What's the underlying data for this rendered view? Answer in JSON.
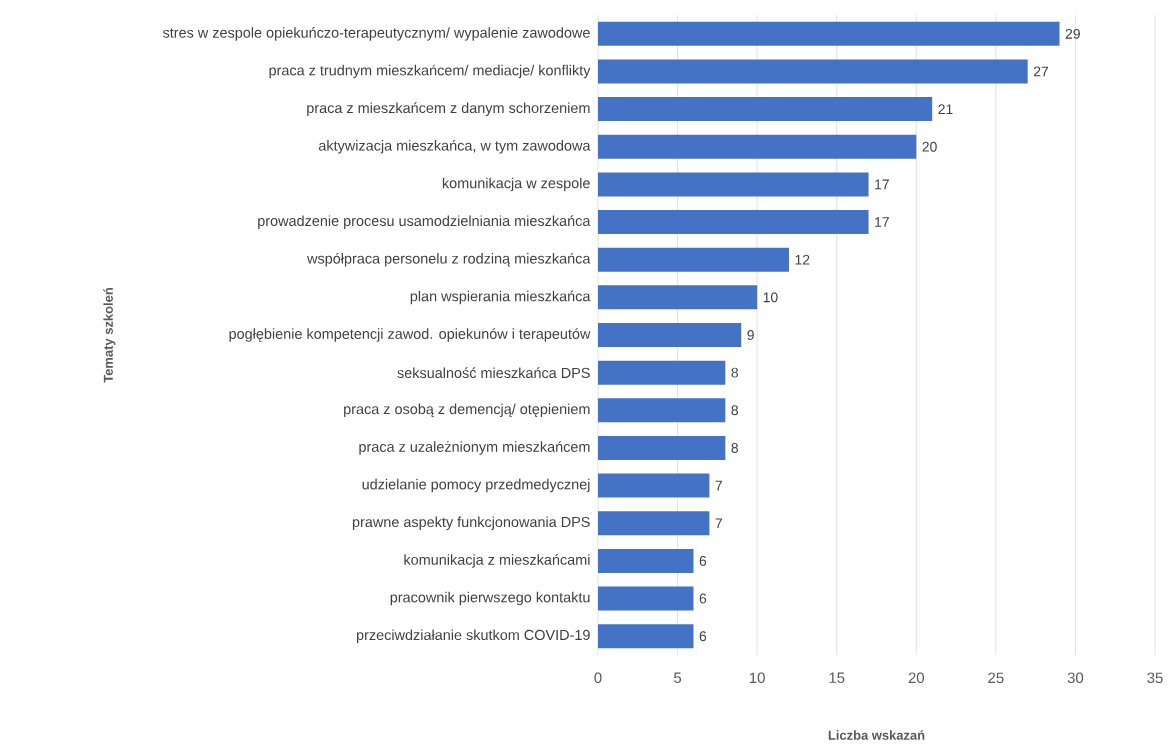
{
  "chart_data": {
    "type": "bar",
    "orientation": "horizontal",
    "xlabel": "Liczba wskazań",
    "ylabel": "Tematy szkoleń",
    "categories": [
      "stres w zespole opiekuńczo-terapeutycznym/ wypalenie zawodowe",
      "praca z trudnym mieszkańcem/ mediacje/ konflikty",
      "praca z mieszkańcem z danym schorzeniem",
      "aktywizacja mieszkańca, w tym zawodowa",
      "komunikacja w zespole",
      "prowadzenie procesu usamodzielniania mieszkańca",
      "współpraca personelu z rodziną mieszkańca",
      "plan wspierania mieszkańca",
      "pogłębienie kompetencji zawod. opiekunów i terapeutów",
      "seksualność mieszkańca DPS",
      "praca z osobą z demencją/ otępieniem",
      "praca z uzależnionym mieszkańcem",
      "udzielanie pomocy przedmedycznej",
      "prawne aspekty funkcjonowania DPS",
      "komunikacja z mieszkańcami",
      "pracownik pierwszego kontaktu",
      "przeciwdziałanie skutkom COVID-19"
    ],
    "values": [
      29,
      27,
      21,
      20,
      17,
      17,
      12,
      10,
      9,
      8,
      8,
      8,
      7,
      7,
      6,
      6,
      6
    ],
    "color": "#4472c4",
    "xlim": [
      0,
      35
    ],
    "xticks": [
      0,
      5,
      10,
      15,
      20,
      25,
      30,
      35
    ],
    "grid": "x",
    "data_labels": true
  }
}
